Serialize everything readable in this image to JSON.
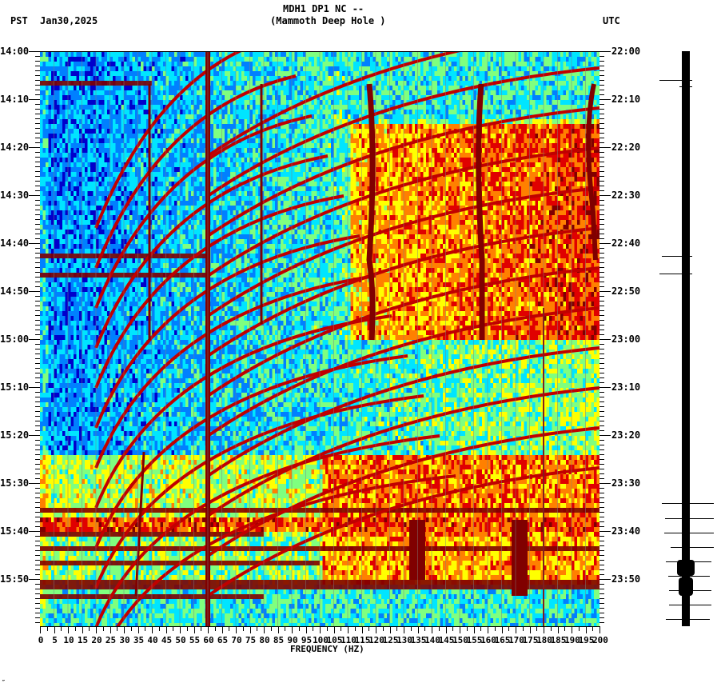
{
  "header": {
    "station": "MDH1 DP1 NC --",
    "location": "(Mammoth Deep Hole )",
    "left_tz": "PST",
    "date": "Jan30,2025",
    "right_tz": "UTC"
  },
  "footer": {
    "mark": "″"
  },
  "chart_data": {
    "type": "heatmap",
    "title": "MDH1 DP1 NC -- (Mammoth Deep Hole )",
    "xlabel": "FREQUENCY (HZ)",
    "ylabel_left": "PST",
    "ylabel_right": "UTC",
    "xlim": [
      0,
      200
    ],
    "x_ticks": [
      0,
      5,
      10,
      15,
      20,
      25,
      30,
      35,
      40,
      45,
      50,
      55,
      60,
      65,
      70,
      75,
      80,
      85,
      90,
      95,
      100,
      105,
      110,
      115,
      120,
      125,
      130,
      135,
      140,
      145,
      150,
      155,
      160,
      165,
      170,
      175,
      180,
      185,
      190,
      195,
      200
    ],
    "y_ticks_left": [
      "14:00",
      "14:10",
      "14:20",
      "14:30",
      "14:40",
      "14:50",
      "15:00",
      "15:10",
      "15:20",
      "15:30",
      "15:40",
      "15:50"
    ],
    "y_ticks_right": [
      "22:00",
      "22:10",
      "22:20",
      "22:30",
      "22:40",
      "22:50",
      "23:00",
      "23:10",
      "23:20",
      "23:30",
      "23:40",
      "23:50"
    ],
    "time_span_minutes": 120,
    "colormap": [
      "#0000cc",
      "#0080ff",
      "#00e5ff",
      "#7fff7f",
      "#ffff00",
      "#ff8000",
      "#e00000",
      "#800000"
    ],
    "features": [
      {
        "type": "constant_line",
        "freq_hz": 60,
        "color": "#800000"
      },
      {
        "type": "wandering_line",
        "freq_hz_range": [
          117,
          120
        ],
        "time": "14:07-15:00"
      },
      {
        "type": "wandering_line",
        "freq_hz_range": [
          157,
          160
        ],
        "time": "14:07-15:00"
      },
      {
        "type": "wandering_line",
        "freq_hz_range": [
          196,
          200
        ],
        "time": "14:07-15:00"
      },
      {
        "type": "broadband_band",
        "time": "15:49-15:51",
        "color": "#800000"
      },
      {
        "type": "transient",
        "freq_hz": 135,
        "time": "15:38-15:46"
      },
      {
        "type": "transient",
        "freq_hz": 170,
        "time": "15:38-15:52"
      }
    ]
  }
}
